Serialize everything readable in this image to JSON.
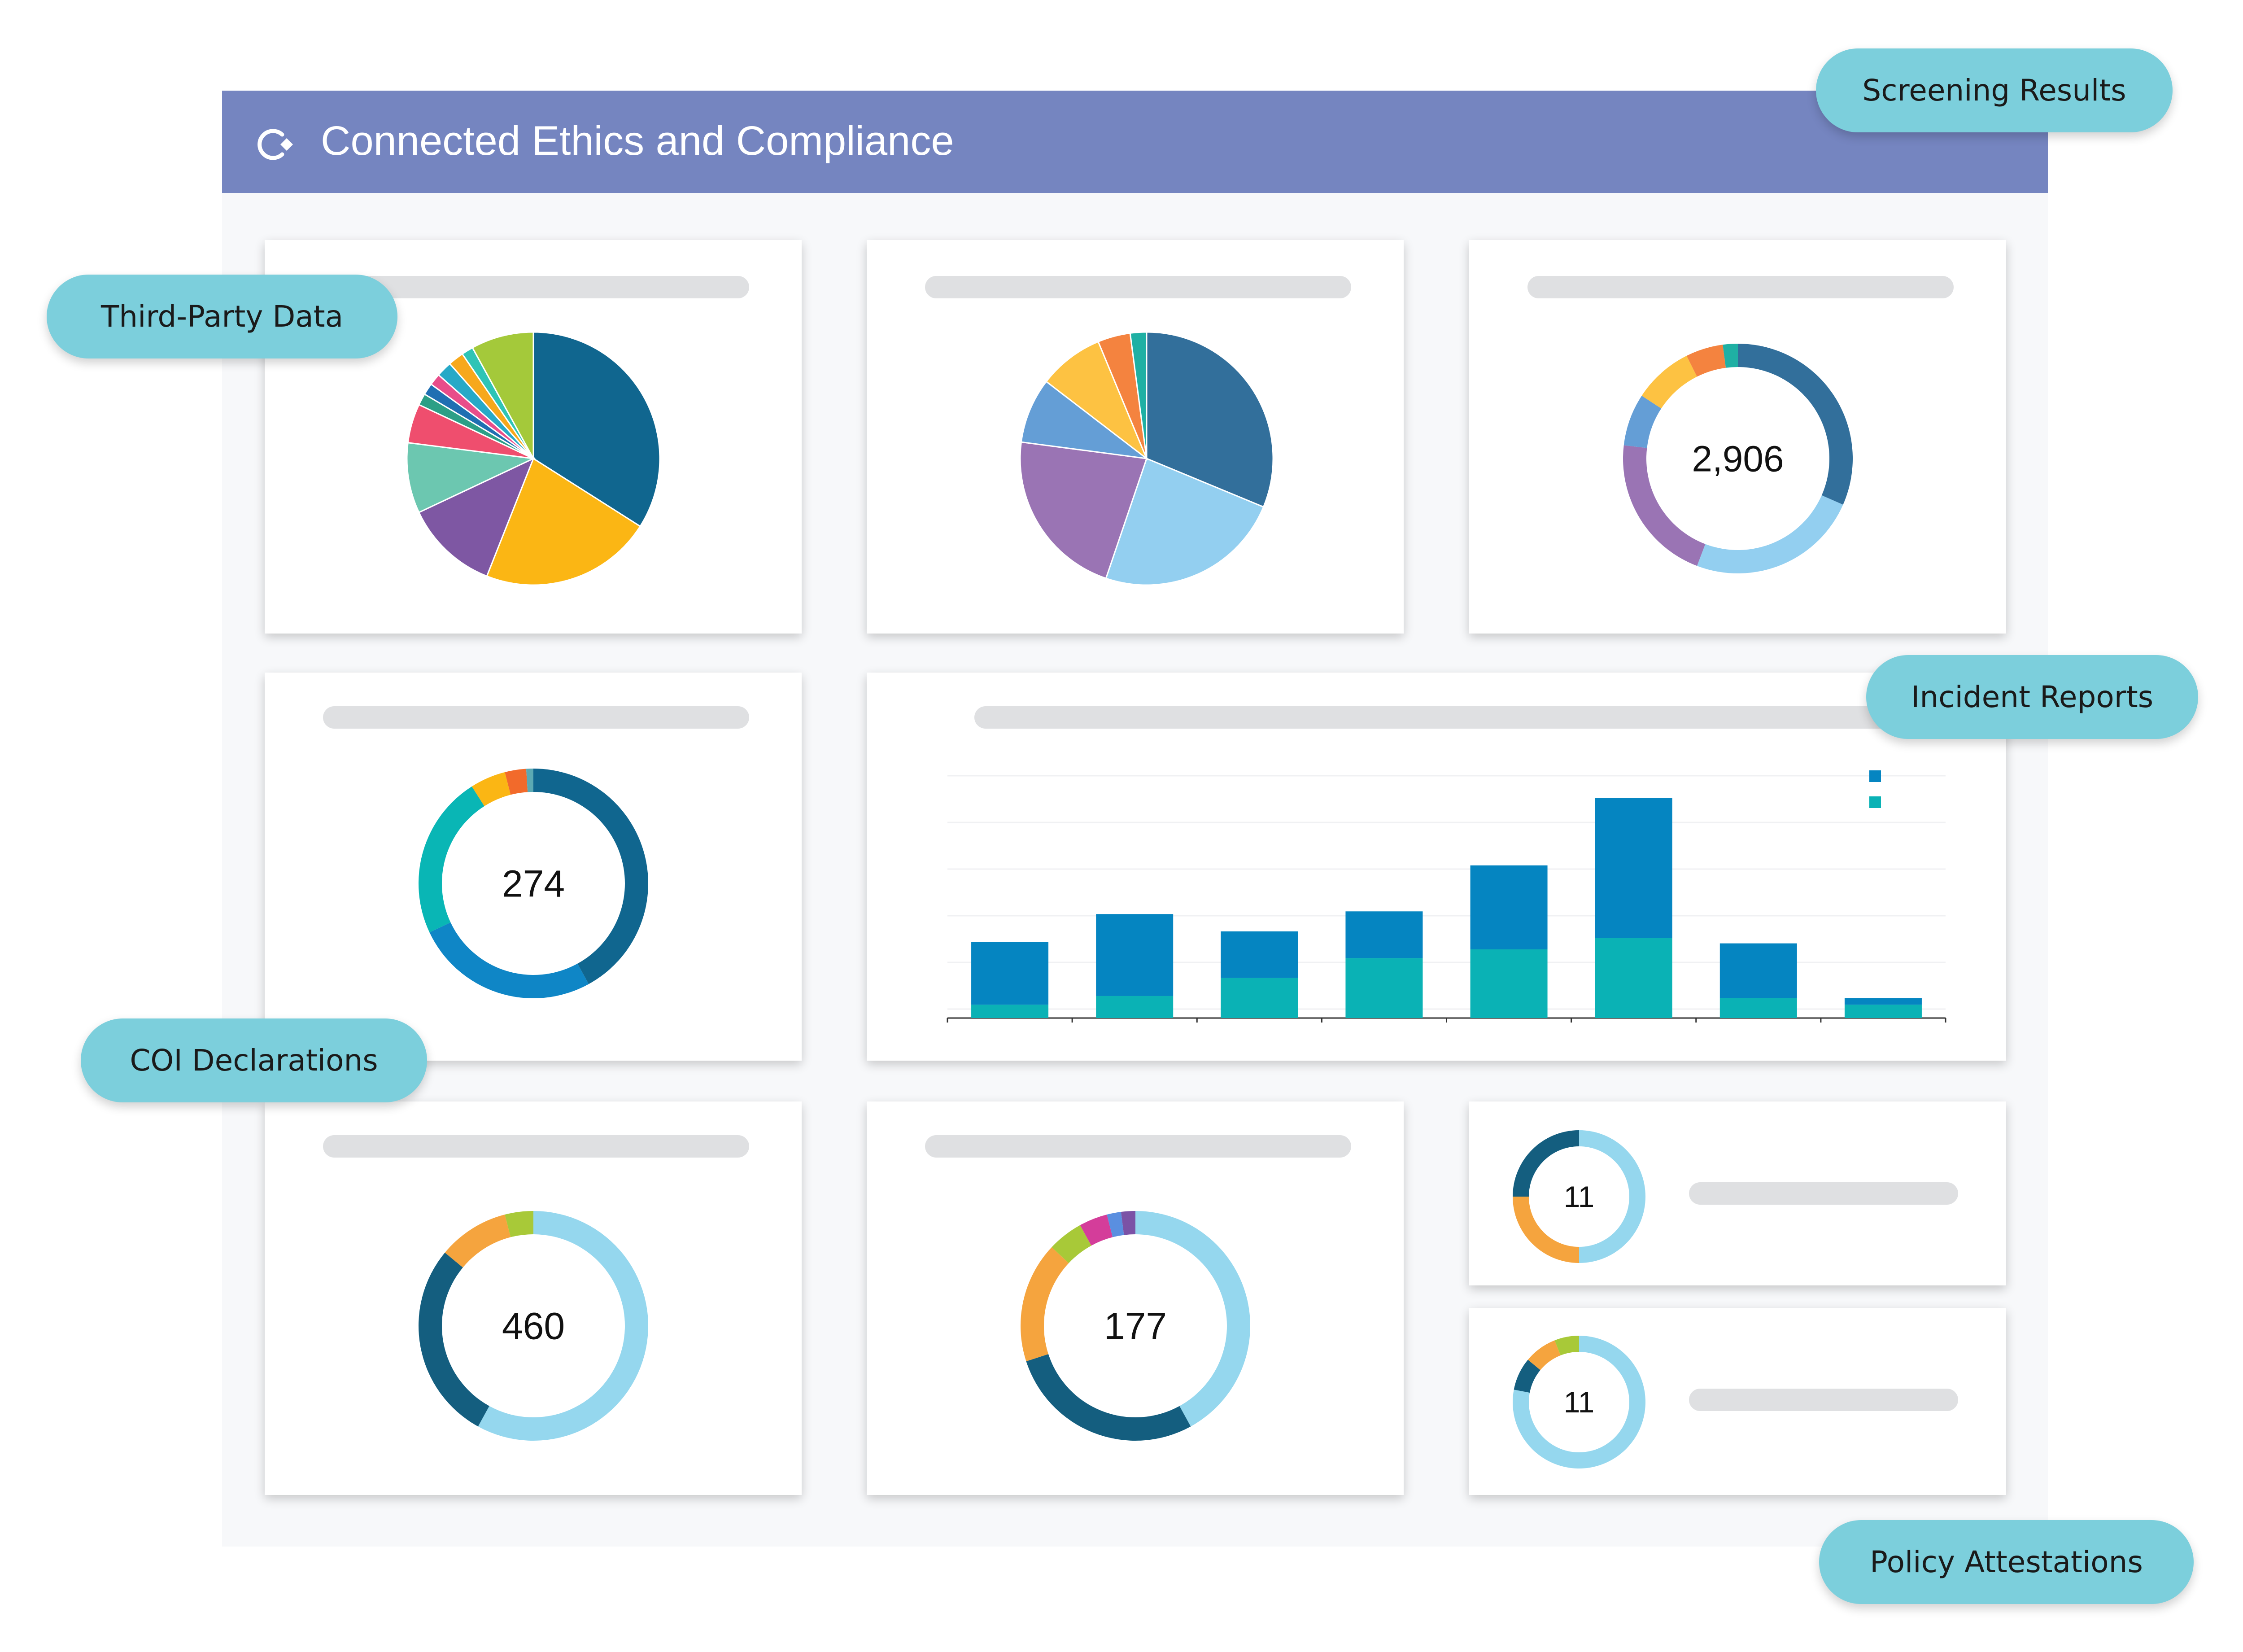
{
  "header": {
    "title": "Connected Ethics and Compliance",
    "logo_icon": "refresh-cycle-icon",
    "background": "#7585c0"
  },
  "labels": {
    "screening_results": "Screening Results",
    "third_party_data": "Third-Party Data",
    "incident_reports": "Incident Reports",
    "coi_declarations": "COI Declarations",
    "policy_attestations": "Policy Attestations",
    "pill_color": "#7ccfdc"
  },
  "chart_data": [
    {
      "id": "pie-third-party",
      "type": "pie",
      "title": "",
      "values": [
        34,
        22,
        12,
        9,
        5,
        1.5,
        1.5,
        1.5,
        2,
        2,
        1.5,
        8
      ],
      "colors": [
        "#10668f",
        "#fbb614",
        "#7e57a3",
        "#6cc7b0",
        "#ef4e6e",
        "#2c9f86",
        "#1f6fb2",
        "#e84d8a",
        "#27a9c7",
        "#f7a81b",
        "#2ec4b6",
        "#a4c93a"
      ]
    },
    {
      "id": "pie-screening",
      "type": "pie",
      "title": "",
      "values": [
        30,
        23,
        21,
        8,
        8,
        4,
        2
      ],
      "colors": [
        "#326f9b",
        "#93cff0",
        "#9a74b4",
        "#649ed6",
        "#fdc242",
        "#f4833f",
        "#1fb0a4"
      ]
    },
    {
      "id": "donut-screening-total",
      "type": "pie",
      "center_value": "2,906",
      "values": [
        30,
        23,
        20,
        7,
        8,
        5,
        2
      ],
      "colors": [
        "#326f9b",
        "#93cff0",
        "#9a74b4",
        "#649ed6",
        "#fdc242",
        "#f4833f",
        "#1fb0a4"
      ]
    },
    {
      "id": "donut-incidents-total",
      "type": "pie",
      "center_value": "274",
      "values": [
        42,
        26,
        23,
        5,
        3,
        1
      ],
      "colors": [
        "#10668f",
        "#0f86c6",
        "#09b6b5",
        "#fbb614",
        "#f26a2b",
        "#5ba9b3"
      ]
    },
    {
      "id": "bar-incidents",
      "type": "bar",
      "title": "",
      "categories": [
        "",
        "",
        "",
        "",
        "",
        "",
        "",
        ""
      ],
      "ylim": [
        0,
        35
      ],
      "series": [
        {
          "values": [
            2,
            3.3,
            6,
            9,
            10.3,
            12,
            3,
            2
          ],
          "color": "#0ab2b5"
        },
        {
          "values": [
            9.4,
            12.3,
            7,
            7,
            12.6,
            21,
            8.2,
            1
          ]
        }
      ],
      "colors": [
        "#0ab2b5",
        "#0585c1"
      ],
      "grid": true
    },
    {
      "id": "donut-coi-total",
      "type": "pie",
      "center_value": "460",
      "values": [
        58,
        28,
        10,
        4
      ],
      "colors": [
        "#95d7ee",
        "#145e7f",
        "#f5a43e",
        "#a8c938"
      ]
    },
    {
      "id": "donut-177-total",
      "type": "pie",
      "center_value": "177",
      "values": [
        42,
        28,
        17,
        5,
        4,
        2,
        2
      ],
      "colors": [
        "#95d7ee",
        "#145e7f",
        "#f5a43e",
        "#a8c938",
        "#d43d9a",
        "#5a8fe0",
        "#7b52a6"
      ]
    },
    {
      "id": "donut-policy-1",
      "type": "pie",
      "center_value": "11",
      "values": [
        50,
        25,
        25
      ],
      "colors": [
        "#95d7ee",
        "#f5a43e",
        "#145e7f"
      ]
    },
    {
      "id": "donut-policy-2",
      "type": "pie",
      "center_value": "11",
      "values": [
        78,
        8,
        8,
        6
      ],
      "colors": [
        "#95d7ee",
        "#145e7f",
        "#f5a43e",
        "#a8c938"
      ]
    }
  ]
}
